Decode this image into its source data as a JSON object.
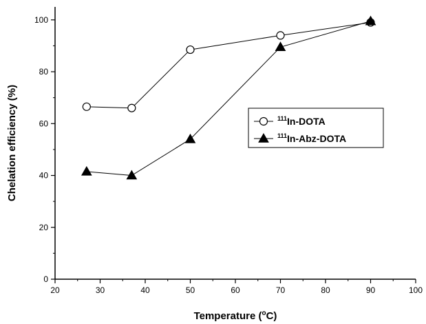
{
  "chart_data": {
    "type": "line",
    "xlabel": "Temperature (°C)",
    "xlabel_parts": {
      "prefix": "Temperature (",
      "superscript": "o",
      "suffix": "C)"
    },
    "ylabel": "Chelation efficiency (%)",
    "xlim": [
      20,
      100
    ],
    "ylim": [
      0,
      105
    ],
    "x_ticks": [
      20,
      30,
      40,
      50,
      60,
      70,
      80,
      90,
      100
    ],
    "y_ticks": [
      0,
      20,
      40,
      60,
      80,
      100
    ],
    "grid": false,
    "legend_position": "center-right",
    "series": [
      {
        "name": "111In-DOTA",
        "name_parts": {
          "superscript": "111",
          "text": "In-DOTA"
        },
        "marker": "open-circle",
        "color": "#000000",
        "x": [
          27,
          37,
          50,
          70,
          90
        ],
        "y": [
          66.5,
          66,
          88.5,
          94,
          99
        ]
      },
      {
        "name": "111In-Abz-DOTA",
        "name_parts": {
          "superscript": "111",
          "text": "In-Abz-DOTA"
        },
        "marker": "filled-triangle",
        "color": "#000000",
        "x": [
          27,
          37,
          50,
          70,
          90
        ],
        "y": [
          41.5,
          40,
          54,
          89.5,
          99.5
        ]
      }
    ]
  }
}
